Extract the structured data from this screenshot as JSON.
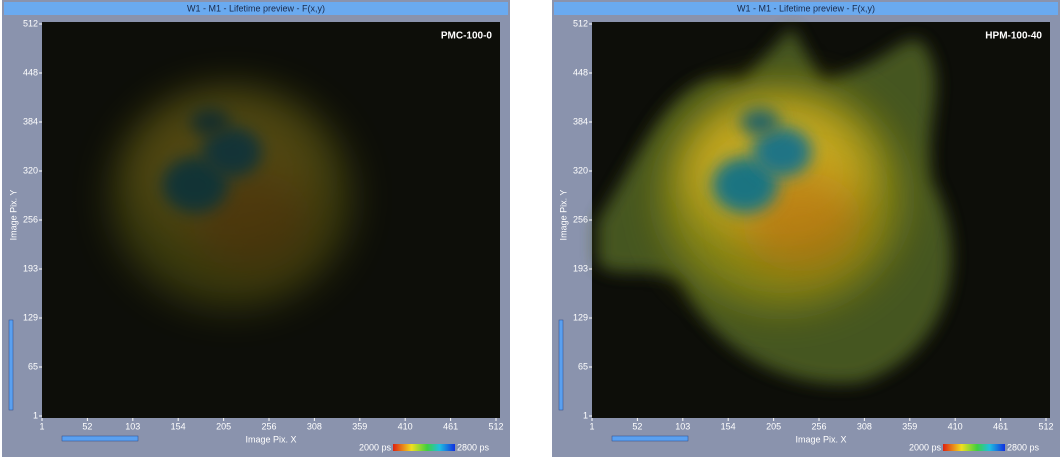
{
  "panels": [
    {
      "title": "W1 - M1 - Lifetime preview - F(x,y)",
      "label": "PMC-100-0",
      "x_axis_label": "Image Pix. X",
      "y_axis_label": "Image Pix. Y",
      "x_ticks": [
        1,
        52,
        103,
        154,
        205,
        256,
        308,
        359,
        410,
        461,
        512
      ],
      "y_ticks": [
        1,
        65,
        129,
        193,
        256,
        320,
        384,
        448,
        512
      ],
      "colorbar": {
        "min_label": "2000 ps",
        "max_label": "2800 ps"
      }
    },
    {
      "title": "W1 - M1 - Lifetime preview - F(x,y)",
      "label": "HPM-100-40",
      "x_axis_label": "Image Pix. X",
      "y_axis_label": "Image Pix. Y",
      "x_ticks": [
        1,
        52,
        103,
        154,
        205,
        256,
        308,
        359,
        410,
        461,
        512
      ],
      "y_ticks": [
        1,
        65,
        129,
        193,
        256,
        320,
        384,
        448,
        512
      ],
      "colorbar": {
        "min_label": "2000 ps",
        "max_label": "2800 ps"
      }
    }
  ]
}
